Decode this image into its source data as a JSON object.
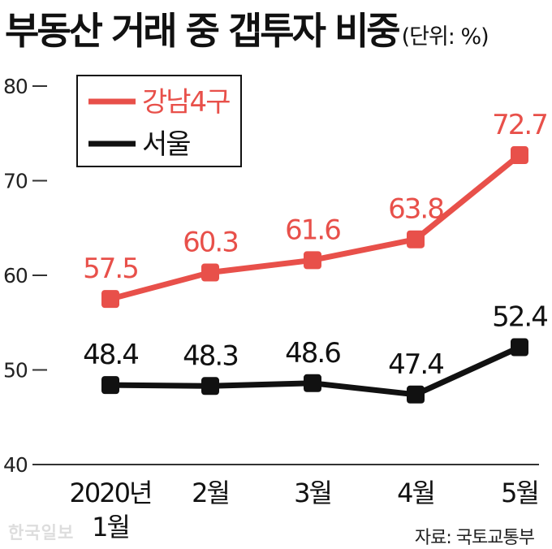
{
  "title": "부동산 거래 중 갭투자 비중",
  "unit_label": "(단위: %)",
  "source": "자료: 국토교통부",
  "watermark": "한국일보",
  "colors": {
    "gangnam": "#e8504a",
    "seoul": "#111111",
    "axis": "#333333"
  },
  "chart_data": {
    "type": "line",
    "title": "부동산 거래 중 갭투자 비중",
    "ylabel": "",
    "xlabel": "",
    "ylim": [
      40,
      80
    ],
    "yticks": [
      "40",
      "50",
      "60",
      "70",
      "80"
    ],
    "categories": [
      "2020년\n1월",
      "2월",
      "3월",
      "4월",
      "5월"
    ],
    "grid": false,
    "legend_position": "top-left",
    "series": [
      {
        "name": "강남4구",
        "values": [
          57.5,
          60.3,
          61.6,
          63.8,
          72.7
        ],
        "labels": [
          "57.5",
          "60.3",
          "61.6",
          "63.8",
          "72.7"
        ],
        "color": "#e8504a"
      },
      {
        "name": "서울",
        "values": [
          48.4,
          48.3,
          48.6,
          47.4,
          52.4
        ],
        "labels": [
          "48.4",
          "48.3",
          "48.6",
          "47.4",
          "52.4"
        ],
        "color": "#111111"
      }
    ]
  }
}
